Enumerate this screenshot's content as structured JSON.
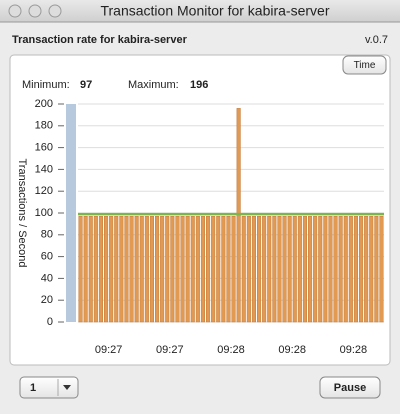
{
  "window": {
    "title": "Transaction Monitor for kabira-server"
  },
  "header": {
    "title": "Transaction rate for kabira-server",
    "version": "v.0.7"
  },
  "buttons": {
    "time": "Time",
    "pause": "Pause"
  },
  "dropdown": {
    "value": "1"
  },
  "stats": {
    "min_label": "Minimum:",
    "min_value": "97",
    "max_label": "Maximum:",
    "max_value": "196"
  },
  "chart_data": {
    "type": "bar",
    "y_label": "Transactions / Second",
    "x_labels": [
      "09:27",
      "09:27",
      "09:28",
      "09:28",
      "09:28"
    ],
    "ylim": [
      0,
      200
    ],
    "yticks": [
      0,
      20,
      40,
      60,
      80,
      100,
      120,
      140,
      160,
      180,
      200
    ],
    "grid": true,
    "color": "#e29a52",
    "values": [
      97,
      97,
      97,
      97,
      97,
      97,
      97,
      97,
      97,
      97,
      97,
      97,
      97,
      97,
      97,
      97,
      97,
      97,
      97,
      97,
      97,
      97,
      97,
      97,
      97,
      97,
      97,
      97,
      97,
      97,
      97,
      196,
      97,
      97,
      97,
      97,
      97,
      97,
      97,
      97,
      97,
      97,
      97,
      97,
      97,
      97,
      97,
      97,
      97,
      97,
      97,
      97,
      97,
      97,
      97,
      97,
      97,
      97,
      97,
      97
    ],
    "line_value": 99,
    "line_color": "#7ab648"
  }
}
